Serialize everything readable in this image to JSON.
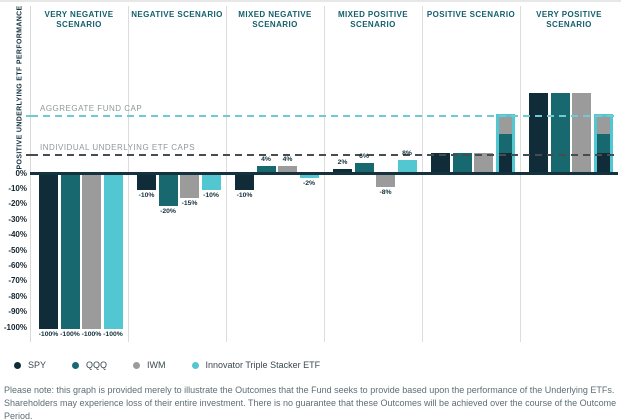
{
  "colors": {
    "series": {
      "SPY": "#0F2C38",
      "QQQ": "#17696F",
      "IWM": "#9B9B9B",
      "Innovator Triple Stacker ETF": "#52C6D1"
    },
    "header_text": "#135F6C",
    "aggregate_line": "#6FCBD3",
    "individual_line": "#474C4E",
    "zero_axis": "#14333E",
    "cap_label_text": "#90989A",
    "footnote_text": "#5D6E76"
  },
  "chart": {
    "y_axis_label": "POSITIVE UNDERLYING ETF PERFORMANCE",
    "cap_lines": {
      "aggregate": {
        "label": "AGGREGATE FUND CAP",
        "value_pct": 37.5
      },
      "individual": {
        "label": "INDIVIDUAL UNDERLYING ETF CAPS",
        "value_pct": 12.5
      }
    }
  },
  "chart_data": {
    "type": "bar",
    "title": "",
    "ylabel": "POSITIVE UNDERLYING ETF PERFORMANCE",
    "ylim": [
      -100,
      55
    ],
    "grid": "vertical-column-separators",
    "legend_position": "bottom",
    "y_ticks": [
      "0%",
      "-10%",
      "-20%",
      "-30%",
      "-40%",
      "-50%",
      "-60%",
      "-70%",
      "-80%",
      "-90%",
      "-100%"
    ],
    "series_names": [
      "SPY",
      "QQQ",
      "IWM",
      "Innovator Triple Stacker ETF"
    ],
    "reference_lines": [
      {
        "label": "AGGREGATE FUND CAP",
        "value": 37.5,
        "style": "dashed",
        "color": "#6FCBD3"
      },
      {
        "label": "INDIVIDUAL UNDERLYING ETF CAPS",
        "value": 12.5,
        "style": "dashed",
        "color": "#474C4E"
      }
    ],
    "scenarios": [
      {
        "label": "VERY NEGATIVE SCENARIO",
        "bars": [
          {
            "series": "SPY",
            "value": -100,
            "label": "-100%"
          },
          {
            "series": "QQQ",
            "value": -100,
            "label": "-100%"
          },
          {
            "series": "IWM",
            "value": -100,
            "label": "-100%"
          },
          {
            "series": "Innovator Triple Stacker ETF",
            "value": -100,
            "label": "-100%"
          }
        ]
      },
      {
        "label": "NEGATIVE SCENARIO",
        "bars": [
          {
            "series": "SPY",
            "value": -10,
            "label": "-10%"
          },
          {
            "series": "QQQ",
            "value": -20,
            "label": "-20%"
          },
          {
            "series": "IWM",
            "value": -15,
            "label": "-15%"
          },
          {
            "series": "Innovator Triple Stacker ETF",
            "value": -10,
            "label": "-10%"
          }
        ]
      },
      {
        "label": "MIXED NEGATIVE SCENARIO",
        "bars": [
          {
            "series": "SPY",
            "value": -10,
            "label": "-10%"
          },
          {
            "series": "QQQ",
            "value": 4,
            "label": "4%"
          },
          {
            "series": "IWM",
            "value": 4,
            "label": "4%"
          },
          {
            "series": "Innovator Triple Stacker ETF",
            "value": -2,
            "label": "-2%"
          }
        ]
      },
      {
        "label": "MIXED POSITIVE SCENARIO",
        "bars": [
          {
            "series": "SPY",
            "value": 2,
            "label": "2%"
          },
          {
            "series": "QQQ",
            "value": 6,
            "label": "6%"
          },
          {
            "series": "IWM",
            "value": -8,
            "label": "-8%"
          },
          {
            "series": "Innovator Triple Stacker ETF",
            "value": 8,
            "label": "8%"
          }
        ]
      },
      {
        "label": "POSITIVE SCENARIO",
        "bars": [
          {
            "series": "SPY",
            "value": 12.5,
            "label": ""
          },
          {
            "series": "QQQ",
            "value": 12.5,
            "label": ""
          },
          {
            "series": "IWM",
            "value": 12.5,
            "label": ""
          },
          {
            "series": "Innovator Triple Stacker ETF",
            "value": 37.5,
            "label": "",
            "stacked": true,
            "segments": [
              {
                "series": "SPY",
                "value": 12.5
              },
              {
                "series": "QQQ",
                "value": 12.5
              },
              {
                "series": "IWM",
                "value": 12.5
              }
            ]
          }
        ]
      },
      {
        "label": "VERY POSITIVE SCENARIO",
        "bars": [
          {
            "series": "SPY",
            "value": 51,
            "label": ""
          },
          {
            "series": "QQQ",
            "value": 51,
            "label": ""
          },
          {
            "series": "IWM",
            "value": 51,
            "label": ""
          },
          {
            "series": "Innovator Triple Stacker ETF",
            "value": 37.5,
            "label": "",
            "stacked": true,
            "segments": [
              {
                "series": "SPY",
                "value": 12.5
              },
              {
                "series": "QQQ",
                "value": 12.5
              },
              {
                "series": "IWM",
                "value": 12.5
              }
            ]
          }
        ]
      }
    ]
  },
  "legend": [
    {
      "label": "SPY",
      "color": "#0F2C38"
    },
    {
      "label": "QQQ",
      "color": "#17696F"
    },
    {
      "label": "IWM",
      "color": "#9B9B9B"
    },
    {
      "label": "Innovator Triple Stacker ETF",
      "color": "#52C6D1"
    }
  ],
  "footer": {
    "line1": "Please note: this graph is provided merely to illustrate the Outcomes that the Fund seeks to provide based upon the performance of the Underlying ETFs.",
    "line2": "Shareholders may experience loss of their entire investment. There is no guarantee that these Outcomes will be achieved over the course of the Outcome Period."
  }
}
